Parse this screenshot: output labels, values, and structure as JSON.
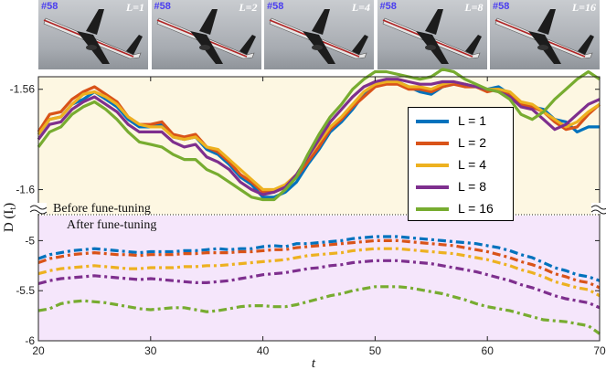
{
  "thumbnails": [
    {
      "frame": "#58",
      "label": "L=1"
    },
    {
      "frame": "#58",
      "label": "L=2"
    },
    {
      "frame": "#58",
      "label": "L=4"
    },
    {
      "frame": "#58",
      "label": "L=8"
    },
    {
      "frame": "#58",
      "label": "L=16"
    }
  ],
  "chart_data": {
    "type": "line",
    "xlabel": "t",
    "ylabel": "D (I_t)",
    "ylabel_main": "D (I",
    "ylabel_sub": "t",
    "ylabel_end": ")",
    "x_ticks": [
      "20",
      "30",
      "40",
      "50",
      "60",
      "70"
    ],
    "upper_y_ticks": [
      "-1.56",
      "-1.6"
    ],
    "lower_y_ticks": [
      "-5",
      "-5.5",
      "-6"
    ],
    "upper_ylim": [
      -1.61,
      -1.555
    ],
    "lower_ylim": [
      -6.0,
      -4.75
    ],
    "xlim": [
      20,
      70
    ],
    "annotation_before": "Before fune-tuning",
    "annotation_after": "After fune-tuning",
    "x": [
      20,
      21,
      22,
      23,
      24,
      25,
      26,
      27,
      28,
      29,
      30,
      31,
      32,
      33,
      34,
      35,
      36,
      37,
      38,
      39,
      40,
      41,
      42,
      43,
      44,
      45,
      46,
      47,
      48,
      49,
      50,
      51,
      52,
      53,
      54,
      55,
      56,
      57,
      58,
      59,
      60,
      61,
      62,
      63,
      64,
      65,
      66,
      67,
      68,
      69,
      70
    ],
    "legend_location": "upper right",
    "colors": {
      "L1": "#0072BD",
      "L2": "#D95319",
      "L4": "#EDB120",
      "L8": "#7E2F8E",
      "L16": "#77AC30"
    },
    "series": [
      {
        "name": "L = 1",
        "color": "#0072BD",
        "before": [
          -1.578,
          -1.572,
          -1.571,
          -1.566,
          -1.564,
          -1.561,
          -1.564,
          -1.567,
          -1.572,
          -1.575,
          -1.575,
          -1.574,
          -1.579,
          -1.58,
          -1.579,
          -1.584,
          -1.586,
          -1.59,
          -1.595,
          -1.598,
          -1.603,
          -1.603,
          -1.601,
          -1.597,
          -1.59,
          -1.584,
          -1.577,
          -1.573,
          -1.568,
          -1.562,
          -1.558,
          -1.557,
          -1.557,
          -1.559,
          -1.561,
          -1.562,
          -1.559,
          -1.558,
          -1.558,
          -1.559,
          -1.56,
          -1.559,
          -1.562,
          -1.566,
          -1.567,
          -1.568,
          -1.572,
          -1.573,
          -1.577,
          -1.575,
          -1.575
        ],
        "after": [
          -5.18,
          -5.14,
          -5.12,
          -5.1,
          -5.09,
          -5.08,
          -5.09,
          -5.1,
          -5.11,
          -5.12,
          -5.11,
          -5.11,
          -5.11,
          -5.1,
          -5.1,
          -5.09,
          -5.08,
          -5.09,
          -5.08,
          -5.08,
          -5.06,
          -5.05,
          -5.06,
          -5.03,
          -5.03,
          -5.02,
          -5.01,
          -5.0,
          -4.98,
          -4.97,
          -4.96,
          -4.96,
          -4.96,
          -4.97,
          -4.98,
          -4.99,
          -5.0,
          -5.01,
          -5.02,
          -5.03,
          -5.05,
          -5.07,
          -5.1,
          -5.14,
          -5.17,
          -5.22,
          -5.27,
          -5.3,
          -5.34,
          -5.36,
          -5.4
        ]
      },
      {
        "name": "L = 2",
        "color": "#D95319",
        "before": [
          -1.577,
          -1.57,
          -1.569,
          -1.564,
          -1.561,
          -1.559,
          -1.562,
          -1.565,
          -1.571,
          -1.574,
          -1.574,
          -1.573,
          -1.578,
          -1.579,
          -1.578,
          -1.583,
          -1.585,
          -1.589,
          -1.594,
          -1.597,
          -1.601,
          -1.601,
          -1.599,
          -1.595,
          -1.589,
          -1.583,
          -1.576,
          -1.572,
          -1.567,
          -1.563,
          -1.559,
          -1.558,
          -1.558,
          -1.56,
          -1.56,
          -1.561,
          -1.559,
          -1.558,
          -1.559,
          -1.559,
          -1.561,
          -1.56,
          -1.562,
          -1.566,
          -1.567,
          -1.569,
          -1.573,
          -1.576,
          -1.575,
          -1.57,
          -1.566
        ],
        "after": [
          -5.22,
          -5.18,
          -5.16,
          -5.14,
          -5.13,
          -5.12,
          -5.13,
          -5.14,
          -5.14,
          -5.15,
          -5.14,
          -5.14,
          -5.14,
          -5.13,
          -5.13,
          -5.12,
          -5.12,
          -5.12,
          -5.11,
          -5.11,
          -5.1,
          -5.09,
          -5.09,
          -5.07,
          -5.06,
          -5.05,
          -5.04,
          -5.03,
          -5.02,
          -5.01,
          -5.0,
          -5.0,
          -5.0,
          -5.01,
          -5.02,
          -5.03,
          -5.04,
          -5.05,
          -5.07,
          -5.09,
          -5.11,
          -5.14,
          -5.17,
          -5.21,
          -5.24,
          -5.28,
          -5.33,
          -5.36,
          -5.4,
          -5.42,
          -5.47
        ]
      },
      {
        "name": "L = 4",
        "color": "#EDB120",
        "before": [
          -1.578,
          -1.572,
          -1.571,
          -1.566,
          -1.562,
          -1.561,
          -1.563,
          -1.566,
          -1.571,
          -1.574,
          -1.575,
          -1.575,
          -1.579,
          -1.58,
          -1.579,
          -1.583,
          -1.584,
          -1.588,
          -1.592,
          -1.596,
          -1.6,
          -1.6,
          -1.598,
          -1.594,
          -1.587,
          -1.581,
          -1.575,
          -1.571,
          -1.566,
          -1.561,
          -1.558,
          -1.557,
          -1.557,
          -1.559,
          -1.559,
          -1.56,
          -1.558,
          -1.557,
          -1.558,
          -1.559,
          -1.56,
          -1.56,
          -1.561,
          -1.565,
          -1.566,
          -1.569,
          -1.572,
          -1.575,
          -1.573,
          -1.569,
          -1.566
        ],
        "after": [
          -5.33,
          -5.3,
          -5.28,
          -5.27,
          -5.26,
          -5.25,
          -5.26,
          -5.27,
          -5.28,
          -5.28,
          -5.27,
          -5.27,
          -5.27,
          -5.26,
          -5.26,
          -5.25,
          -5.25,
          -5.24,
          -5.23,
          -5.22,
          -5.21,
          -5.2,
          -5.19,
          -5.17,
          -5.15,
          -5.14,
          -5.13,
          -5.12,
          -5.1,
          -5.09,
          -5.08,
          -5.08,
          -5.08,
          -5.09,
          -5.1,
          -5.11,
          -5.12,
          -5.13,
          -5.15,
          -5.17,
          -5.19,
          -5.22,
          -5.25,
          -5.29,
          -5.32,
          -5.36,
          -5.41,
          -5.44,
          -5.47,
          -5.49,
          -5.55
        ]
      },
      {
        "name": "L = 8",
        "color": "#7E2F8E",
        "before": [
          -1.58,
          -1.574,
          -1.573,
          -1.568,
          -1.565,
          -1.563,
          -1.566,
          -1.569,
          -1.574,
          -1.577,
          -1.577,
          -1.577,
          -1.581,
          -1.583,
          -1.582,
          -1.587,
          -1.589,
          -1.592,
          -1.597,
          -1.6,
          -1.602,
          -1.601,
          -1.599,
          -1.594,
          -1.587,
          -1.58,
          -1.573,
          -1.568,
          -1.563,
          -1.559,
          -1.557,
          -1.556,
          -1.556,
          -1.557,
          -1.558,
          -1.558,
          -1.557,
          -1.557,
          -1.558,
          -1.559,
          -1.56,
          -1.561,
          -1.563,
          -1.567,
          -1.568,
          -1.572,
          -1.576,
          -1.574,
          -1.57,
          -1.566,
          -1.564
        ],
        "after": [
          -5.43,
          -5.4,
          -5.38,
          -5.37,
          -5.36,
          -5.35,
          -5.36,
          -5.37,
          -5.38,
          -5.39,
          -5.38,
          -5.39,
          -5.4,
          -5.41,
          -5.42,
          -5.42,
          -5.41,
          -5.4,
          -5.38,
          -5.36,
          -5.34,
          -5.33,
          -5.32,
          -5.3,
          -5.28,
          -5.27,
          -5.25,
          -5.24,
          -5.22,
          -5.21,
          -5.2,
          -5.2,
          -5.2,
          -5.21,
          -5.22,
          -5.23,
          -5.25,
          -5.27,
          -5.29,
          -5.31,
          -5.34,
          -5.37,
          -5.4,
          -5.44,
          -5.47,
          -5.51,
          -5.55,
          -5.58,
          -5.6,
          -5.62,
          -5.67
        ]
      },
      {
        "name": "L = 16",
        "color": "#77AC30",
        "before": [
          -1.583,
          -1.577,
          -1.575,
          -1.57,
          -1.567,
          -1.565,
          -1.568,
          -1.572,
          -1.577,
          -1.581,
          -1.582,
          -1.583,
          -1.586,
          -1.588,
          -1.588,
          -1.592,
          -1.594,
          -1.597,
          -1.6,
          -1.603,
          -1.604,
          -1.604,
          -1.6,
          -1.595,
          -1.586,
          -1.578,
          -1.571,
          -1.566,
          -1.56,
          -1.556,
          -1.553,
          -1.553,
          -1.554,
          -1.555,
          -1.556,
          -1.555,
          -1.552,
          -1.553,
          -1.556,
          -1.558,
          -1.56,
          -1.561,
          -1.564,
          -1.57,
          -1.572,
          -1.569,
          -1.564,
          -1.56,
          -1.556,
          -1.553,
          -1.556
        ],
        "after": [
          -5.7,
          -5.68,
          -5.63,
          -5.61,
          -5.6,
          -5.61,
          -5.62,
          -5.64,
          -5.66,
          -5.68,
          -5.69,
          -5.68,
          -5.67,
          -5.67,
          -5.69,
          -5.71,
          -5.7,
          -5.68,
          -5.66,
          -5.65,
          -5.65,
          -5.66,
          -5.66,
          -5.64,
          -5.61,
          -5.58,
          -5.55,
          -5.53,
          -5.5,
          -5.48,
          -5.46,
          -5.46,
          -5.46,
          -5.47,
          -5.49,
          -5.51,
          -5.53,
          -5.56,
          -5.59,
          -5.63,
          -5.66,
          -5.68,
          -5.7,
          -5.73,
          -5.76,
          -5.79,
          -5.8,
          -5.81,
          -5.83,
          -5.85,
          -5.93
        ]
      }
    ]
  }
}
